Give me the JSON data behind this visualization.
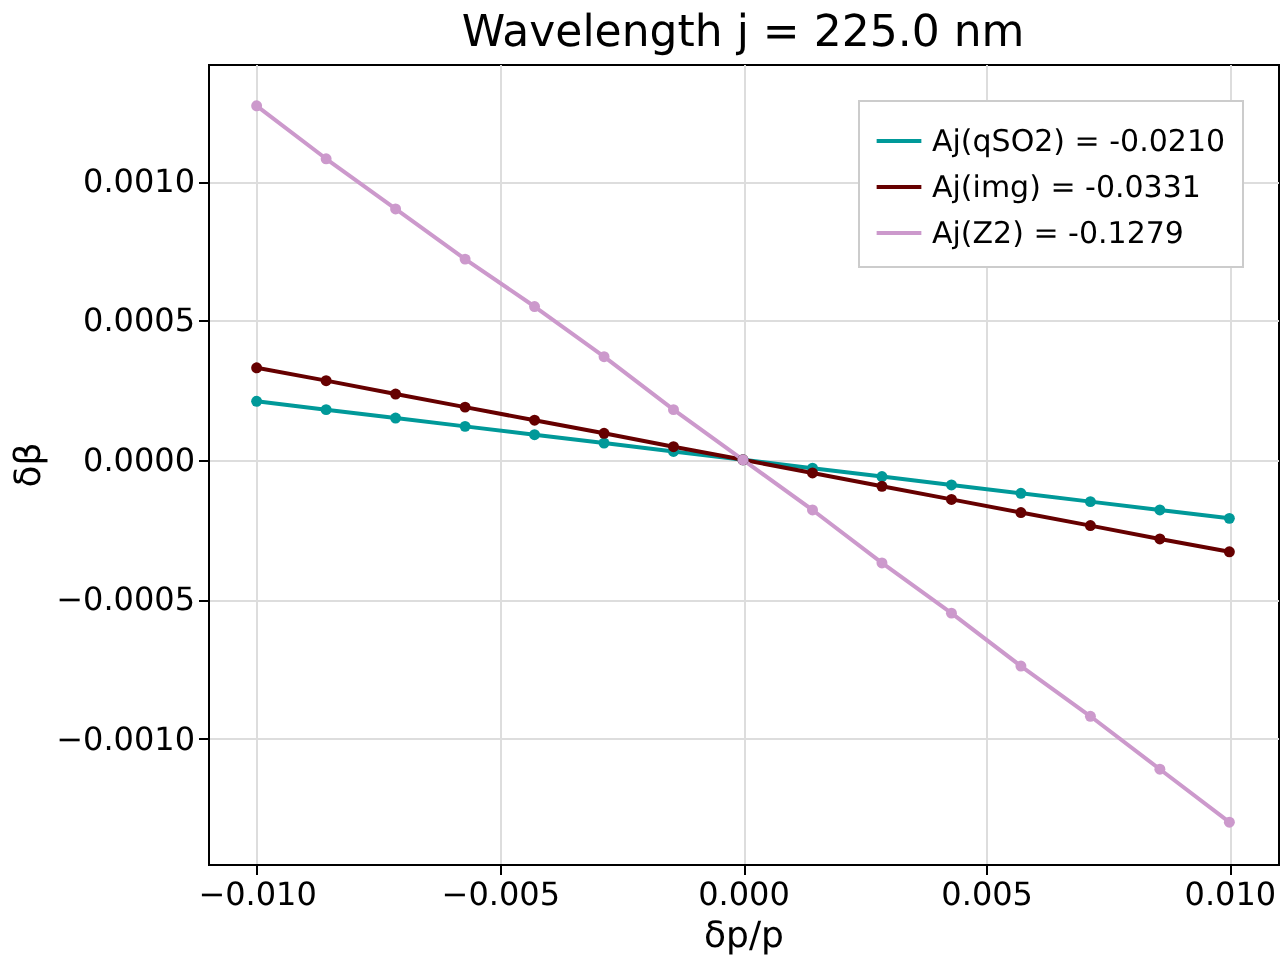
{
  "chart_data": {
    "type": "line",
    "title": "Wavelength j = 225.0 nm",
    "xlabel": "δp/p",
    "ylabel": "δβ",
    "x": [
      -0.01,
      -0.008571,
      -0.007143,
      -0.005714,
      -0.004286,
      -0.002857,
      -0.001429,
      0,
      0.001429,
      0.002857,
      0.004286,
      0.005714,
      0.007143,
      0.008571,
      0.01
    ],
    "series": [
      {
        "name": "Aj(qSO2) = -0.0210",
        "color": "#009999",
        "values": [
          0.00021,
          0.00018,
          0.00015,
          0.00012,
          9e-05,
          6e-05,
          3e-05,
          0,
          -3e-05,
          -6e-05,
          -9e-05,
          -0.00012,
          -0.00015,
          -0.00018,
          -0.00021
        ]
      },
      {
        "name": "Aj(img) = -0.0331",
        "color": "#660000",
        "values": [
          0.00033,
          0.000284,
          0.000236,
          0.000189,
          0.000142,
          9.5e-05,
          4.7e-05,
          0,
          -4.7e-05,
          -9.5e-05,
          -0.000142,
          -0.000189,
          -0.000236,
          -0.000284,
          -0.00033
        ]
      },
      {
        "name": "Aj(Z2) = -0.1279",
        "color": "#cc99cc",
        "values": [
          0.00127,
          0.00108,
          0.0009,
          0.00072,
          0.00055,
          0.00037,
          0.00018,
          0,
          -0.00018,
          -0.00037,
          -0.00055,
          -0.00074,
          -0.00092,
          -0.00111,
          -0.0013
        ]
      }
    ],
    "xlim": [
      -0.011,
      0.011
    ],
    "xticks": [
      {
        "value": -0.01,
        "label": "−0.010"
      },
      {
        "value": -0.005,
        "label": "−0.005"
      },
      {
        "value": 0,
        "label": "0.000"
      },
      {
        "value": 0.005,
        "label": "0.005"
      },
      {
        "value": 0.01,
        "label": "0.010"
      }
    ],
    "ylim": [
      -0.00145,
      0.00142
    ],
    "yticks": [
      {
        "value": -0.001,
        "label": "−0.0010"
      },
      {
        "value": -0.0005,
        "label": "−0.0005"
      },
      {
        "value": 0,
        "label": "0.0000"
      },
      {
        "value": 0.0005,
        "label": "0.0005"
      },
      {
        "value": 0.001,
        "label": "0.0010"
      }
    ],
    "grid": true,
    "legend": "top right",
    "marker": "circle",
    "line_style": "solid"
  }
}
